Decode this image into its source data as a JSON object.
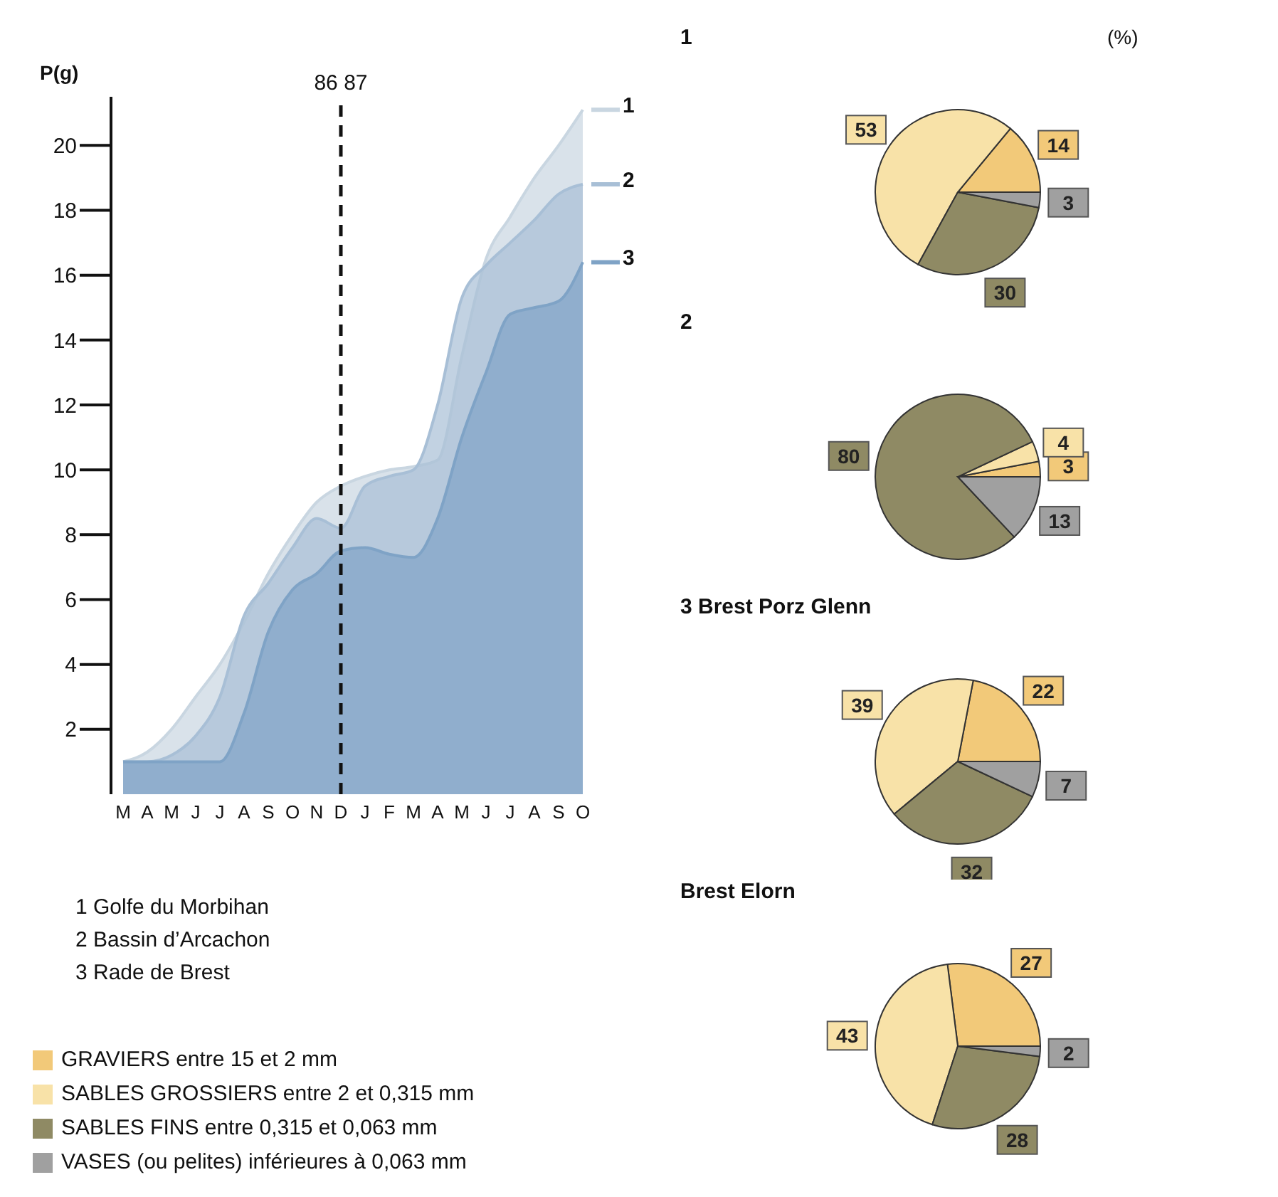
{
  "chart_data": [
    {
      "type": "area",
      "ylabel": "P(g)",
      "categories": [
        "M",
        "A",
        "M",
        "J",
        "J",
        "A",
        "S",
        "O",
        "N",
        "D",
        "J",
        "F",
        "M",
        "A",
        "M",
        "J",
        "J",
        "A",
        "S",
        "O"
      ],
      "series": [
        {
          "name": "1",
          "color": "#c9d6e1",
          "values": [
            1.0,
            1.3,
            2.0,
            3.0,
            4.0,
            5.3,
            6.8,
            8.0,
            9.0,
            9.5,
            9.8,
            10.0,
            10.1,
            10.3,
            13.5,
            16.5,
            17.8,
            19.0,
            20.0,
            21.1
          ]
        },
        {
          "name": "2",
          "color": "#a8bfd6",
          "values": [
            1.0,
            1.0,
            1.2,
            1.8,
            3.0,
            5.5,
            6.5,
            7.6,
            8.5,
            8.2,
            9.5,
            9.8,
            10.0,
            12.0,
            15.3,
            16.3,
            17.0,
            17.7,
            18.5,
            18.8
          ]
        },
        {
          "name": "3",
          "color": "#7fa3c6",
          "values": [
            1.0,
            1.0,
            1.0,
            1.0,
            1.0,
            2.5,
            5.0,
            6.3,
            6.8,
            7.5,
            7.6,
            7.4,
            7.3,
            8.5,
            11.0,
            13.0,
            14.8,
            15.0,
            15.2,
            16.4
          ]
        }
      ],
      "legend": "right",
      "ylim": [
        0,
        21.5
      ],
      "yticks": [
        2,
        4,
        6,
        8,
        10,
        12,
        14,
        16,
        18,
        20
      ],
      "ref_lines": [
        {
          "axis": "x",
          "value": "D",
          "label": "86 87",
          "line_style": "dashed",
          "color": "#111111"
        }
      ],
      "annotations": [
        "1 Golfe du Morbihan",
        "2 Bassin d’Arcachon",
        "3 Rade de Brest"
      ]
    },
    {
      "type": "pie",
      "title": "1",
      "categories": [
        "GRAVIERS entre 15 et 2 mm",
        "SABLES GROSSIERS entre 2 et 0,315 mm",
        "SABLES FINS entre 0,315 et 0,063 mm",
        "VASES (ou pelites) inférieures à 0,063 mm"
      ],
      "values": [
        14,
        53,
        30,
        3
      ],
      "colors": [
        "#f2c979",
        "#f8e2a8",
        "#8f8a64",
        "#a0a0a0"
      ],
      "data_labels": true,
      "legend": "bottom",
      "annotations": [
        "(%)"
      ]
    },
    {
      "type": "pie",
      "title": "2",
      "categories": [
        null,
        null,
        null,
        null
      ],
      "values": [
        3,
        4,
        80,
        13
      ],
      "colors": [
        "#f2c979",
        "#f8e2a8",
        "#8f8a64",
        "#a0a0a0"
      ],
      "data_labels": true
    },
    {
      "type": "pie",
      "title": "3 Brest Porz Glenn",
      "categories": [
        null,
        null,
        null,
        null
      ],
      "values": [
        22,
        39,
        32,
        7
      ],
      "colors": [
        "#f2c979",
        "#f8e2a8",
        "#8f8a64",
        "#a0a0a0"
      ],
      "data_labels": true
    },
    {
      "type": "pie",
      "title": "Brest Elorn",
      "categories": [
        null,
        null,
        null,
        null
      ],
      "values": [
        27,
        43,
        28,
        2
      ],
      "colors": [
        "#f2c979",
        "#f8e2a8",
        "#8f8a64",
        "#a0a0a0"
      ],
      "data_labels": true
    }
  ]
}
